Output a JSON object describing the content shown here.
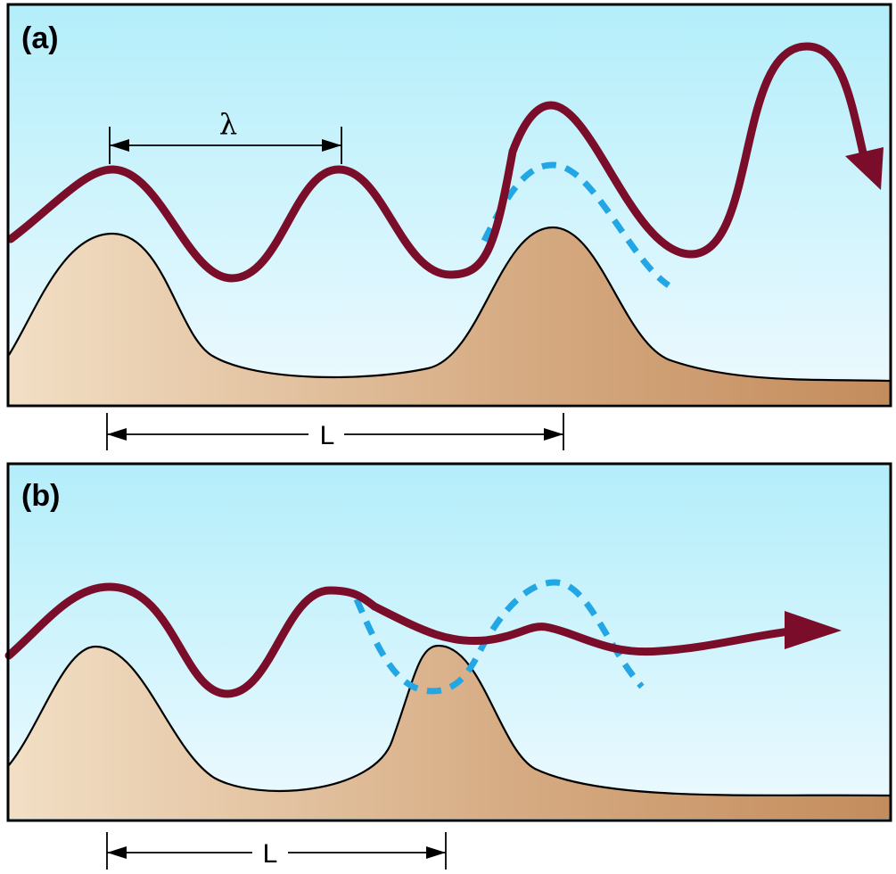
{
  "panels": [
    {
      "id": "a",
      "label": "(a)",
      "wavelength_label": "λ",
      "spacing_label": "L"
    },
    {
      "id": "b",
      "label": "(b)",
      "spacing_label": "L"
    }
  ],
  "colors": {
    "sky_top": "#b3eefa",
    "sky_bottom": "#eefaff",
    "mountain_light": "#f2dfc5",
    "mountain_dark": "#c48c5c",
    "streamline": "#7a0e2a",
    "dashed_wave": "#22a6e4",
    "outline": "#000000"
  }
}
